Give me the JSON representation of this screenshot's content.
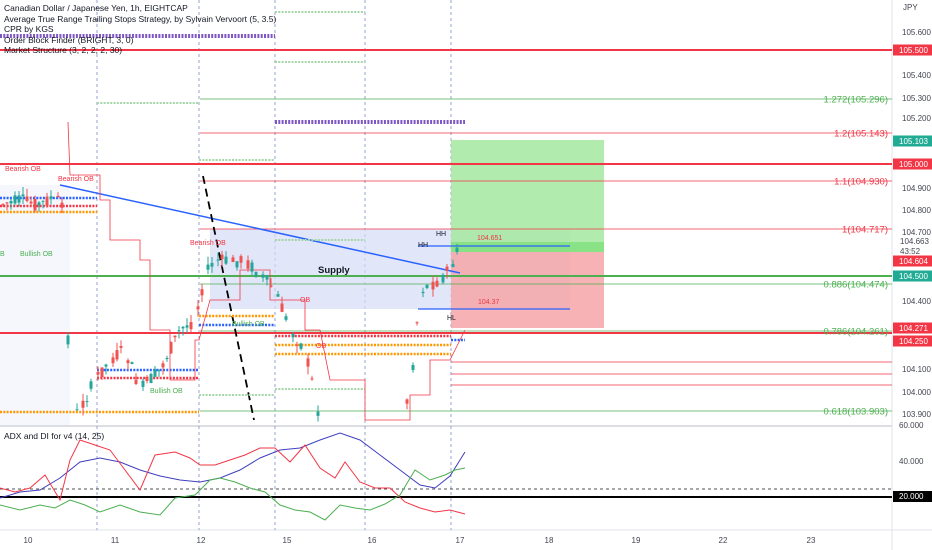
{
  "legend": {
    "symbol": "Canadian Dollar / Japanese Yen, 1h, EIGHTCAP",
    "indicator1": "Average True Range Trailing Stops Strategy, by Sylvain Vervoort (5, 3.5)",
    "indicator2": "CPR by KGS",
    "indicator3": "Order Block Finder (BRIGHT, 3, 0)",
    "indicator4": "Market Structure (3, 2, 2, 2, 30)"
  },
  "adx_title": "ADX and DI for v4 (14, 25)",
  "currency": "JPY",
  "price_ticks": [
    "105.600",
    "105.400",
    "105.300",
    "105.200",
    "104.900",
    "104.800",
    "104.700",
    "104.400",
    "104.100",
    "104.000",
    "103.900"
  ],
  "price_tags": [
    {
      "label": "105.500",
      "color": "#f23645"
    },
    {
      "label": "105.103",
      "color": "#22ab94"
    },
    {
      "label": "105.000",
      "color": "#f23645"
    },
    {
      "label": "104.604",
      "color": "#f23645"
    },
    {
      "label": "104.500",
      "color": "#22ab94"
    },
    {
      "label": "104.271",
      "color": "#f23645"
    },
    {
      "label": "104.250",
      "color": "#f23645"
    }
  ],
  "current_price": "104.663",
  "countdown": "43:52",
  "adx_ticks": [
    "60.000",
    "40.000"
  ],
  "adx_tag": "20.000",
  "x_ticks": [
    "10",
    "11",
    "12",
    "15",
    "16",
    "17",
    "18",
    "19",
    "22",
    "23"
  ],
  "fib_levels": [
    {
      "label": "1.272(105.296)",
      "color": "#4caf50"
    },
    {
      "label": "1.2(105.143)",
      "color": "#f23645"
    },
    {
      "label": "1.1(104.930)",
      "color": "#f23645"
    },
    {
      "label": "1(104.717)",
      "color": "#f23645"
    },
    {
      "label": "0.886(104.474)",
      "color": "#4caf50"
    },
    {
      "label": "0.786(104.261)",
      "color": "#4caf50"
    },
    {
      "label": "0.618(103.903)",
      "color": "#4caf50"
    }
  ],
  "annotations": {
    "supply": "Supply",
    "bearish_ob": "Bearish OB",
    "bullish_ob": "Bullish OB",
    "hh": "HH",
    "hl": "HL",
    "ob": "OB",
    "price_a": "104.651",
    "price_b": "104.37"
  },
  "colors": {
    "bear_line": "#f23645",
    "bull_line": "#4caf50",
    "trend_line": "#2962ff",
    "candle_up": "#26a69a",
    "candle_down": "#ef5350",
    "cpr": "#7e57c2",
    "adx_line": "#3f3fbf",
    "di_plus": "#4caf50",
    "di_minus": "#f23645"
  }
}
